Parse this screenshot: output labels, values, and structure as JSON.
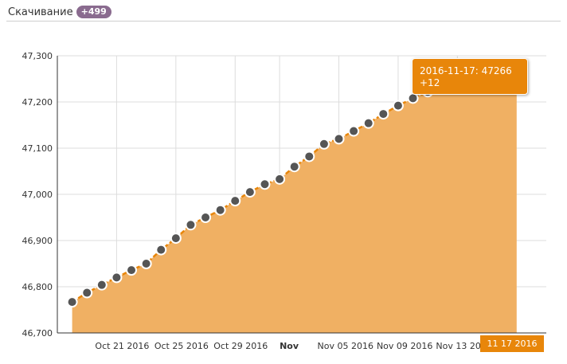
{
  "header": {
    "title": "Скачивание",
    "badge": "+499"
  },
  "colors": {
    "area": "#f0b063",
    "line": "#e8860a",
    "marker": "#555555",
    "highlight": "#e8860a"
  },
  "tooltip": {
    "line1": "2016-11-17: 47266",
    "line2": "+12"
  },
  "crosshair_label": "11 17 2016",
  "chart_data": {
    "type": "area",
    "title": "",
    "xlabel": "",
    "ylabel": "",
    "ylim": [
      46700,
      47300
    ],
    "yticks": [
      "46,700",
      "46,800",
      "46,900",
      "47,000",
      "47,100",
      "47,200",
      "47,300"
    ],
    "xlim": [
      "2016-10-17",
      "2016-11-19"
    ],
    "xticks": [
      {
        "label": "Oct 21 2016",
        "date": "2016-10-21",
        "bold": false
      },
      {
        "label": "Oct 25 2016",
        "date": "2016-10-25",
        "bold": false
      },
      {
        "label": "Oct 29 2016",
        "date": "2016-10-29",
        "bold": false
      },
      {
        "label": "Nov",
        "date": "2016-11-01",
        "bold": true
      },
      {
        "label": "Nov 05 2016",
        "date": "2016-11-05",
        "bold": false
      },
      {
        "label": "Nov 09 2016",
        "date": "2016-11-09",
        "bold": false
      },
      {
        "label": "Nov 13 2016",
        "date": "2016-11-13",
        "bold": false
      }
    ],
    "grid": true,
    "series": [
      {
        "dates": [
          "2016-10-18",
          "2016-10-19",
          "2016-10-20",
          "2016-10-21",
          "2016-10-22",
          "2016-10-23",
          "2016-10-24",
          "2016-10-25",
          "2016-10-26",
          "2016-10-27",
          "2016-10-28",
          "2016-10-29",
          "2016-10-30",
          "2016-10-31",
          "2016-11-01",
          "2016-11-02",
          "2016-11-03",
          "2016-11-04",
          "2016-11-05",
          "2016-11-06",
          "2016-11-07",
          "2016-11-08",
          "2016-11-09",
          "2016-11-10",
          "2016-11-11",
          "2016-11-12",
          "2016-11-13",
          "2016-11-14",
          "2016-11-15",
          "2016-11-16",
          "2016-11-17"
        ],
        "values": [
          46767,
          46787,
          46804,
          46820,
          46836,
          46850,
          46880,
          46905,
          46934,
          46950,
          46966,
          46986,
          47005,
          47022,
          47033,
          47060,
          47082,
          47109,
          47120,
          47137,
          47154,
          47174,
          47192,
          47208,
          47222,
          47235,
          47241,
          47248,
          47254,
          47254,
          47266
        ]
      }
    ],
    "highlight_index": 30,
    "highlight_date": "2016-11-17"
  }
}
